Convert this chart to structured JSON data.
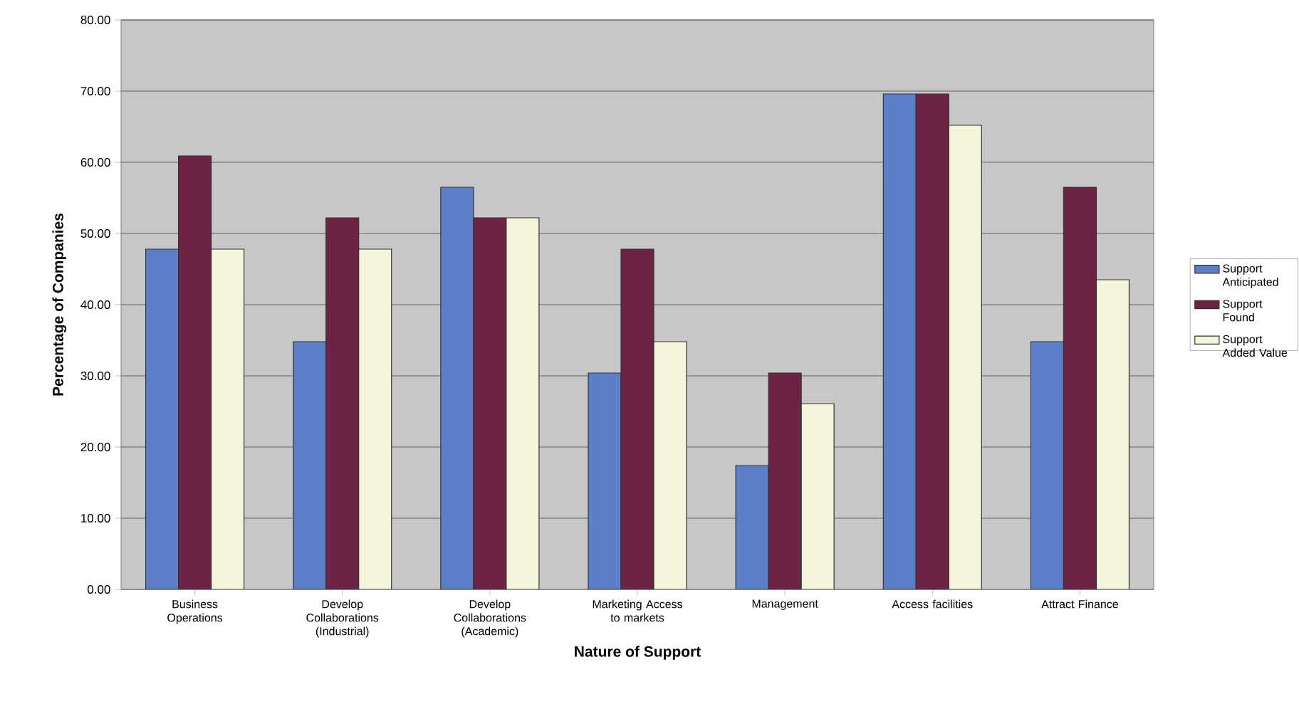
{
  "chart_data": {
    "type": "bar",
    "xlabel": "Nature of Support",
    "ylabel": "Percentage of Companies",
    "categories": [
      "Business Operations",
      "Develop Collaborations (Industrial)",
      "Develop Collaborations (Academic)",
      "Marketing Access to markets",
      "Management",
      "Access facilities",
      "Attract Finance"
    ],
    "series": [
      {
        "name": "Support Anticipated",
        "color": "#5b80c8",
        "values": [
          47.8,
          34.8,
          56.5,
          30.4,
          17.4,
          69.6,
          34.8
        ]
      },
      {
        "name": "Support Found",
        "color": "#6e2344",
        "values": [
          60.9,
          52.2,
          52.2,
          47.8,
          30.4,
          69.6,
          56.5
        ]
      },
      {
        "name": "Support Added Value",
        "color": "#f5f5dc",
        "values": [
          47.8,
          47.8,
          52.2,
          34.8,
          26.1,
          65.2,
          43.5
        ]
      }
    ],
    "ylim": [
      0,
      80
    ],
    "yticks": [
      {
        "value": 0,
        "label": "0.00"
      },
      {
        "value": 10,
        "label": "10.00"
      },
      {
        "value": 20,
        "label": "20.00"
      },
      {
        "value": 30,
        "label": "30.00"
      },
      {
        "value": 40,
        "label": "40.00"
      },
      {
        "value": 50,
        "label": "50.00"
      },
      {
        "value": 60,
        "label": "60.00"
      },
      {
        "value": 70,
        "label": "70.00"
      },
      {
        "value": 80,
        "label": "80.00"
      }
    ],
    "grid": "y",
    "legend": "right"
  }
}
